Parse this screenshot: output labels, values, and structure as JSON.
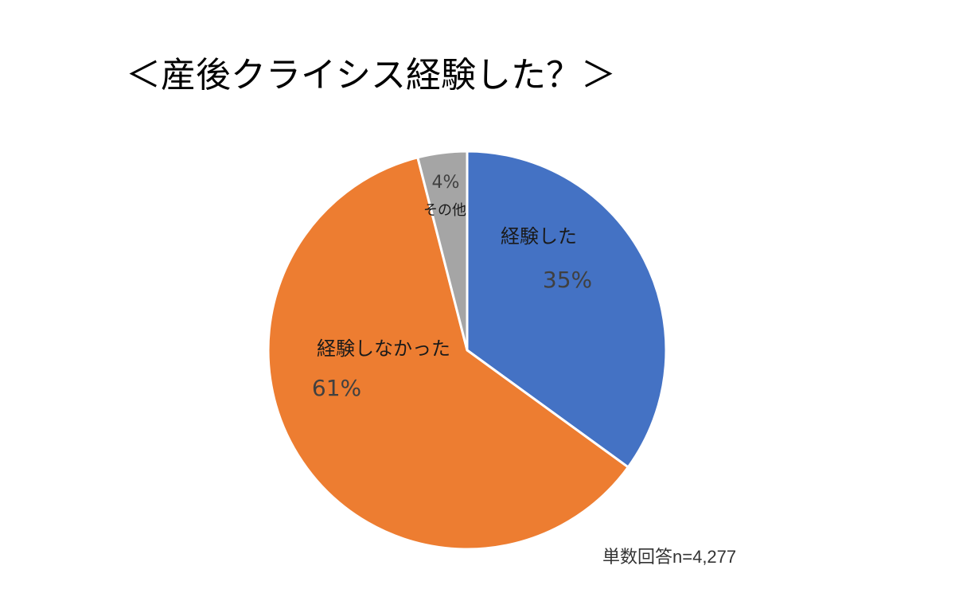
{
  "chart_data": {
    "type": "pie",
    "title": "＜産後クライシス経験した？＞",
    "slices": [
      {
        "label": "経験した",
        "value": 35,
        "value_label": "35%",
        "color": "#4472C4"
      },
      {
        "label": "経験しなかった",
        "value": 61,
        "value_label": "61%",
        "color": "#ED7D31"
      },
      {
        "label": "その他",
        "value": 4,
        "value_label": "4%",
        "color": "#A5A5A5"
      }
    ],
    "start": "12 o'clock",
    "direction": "clockwise",
    "legend": "none",
    "footnote": "単数回答n=4,277"
  }
}
